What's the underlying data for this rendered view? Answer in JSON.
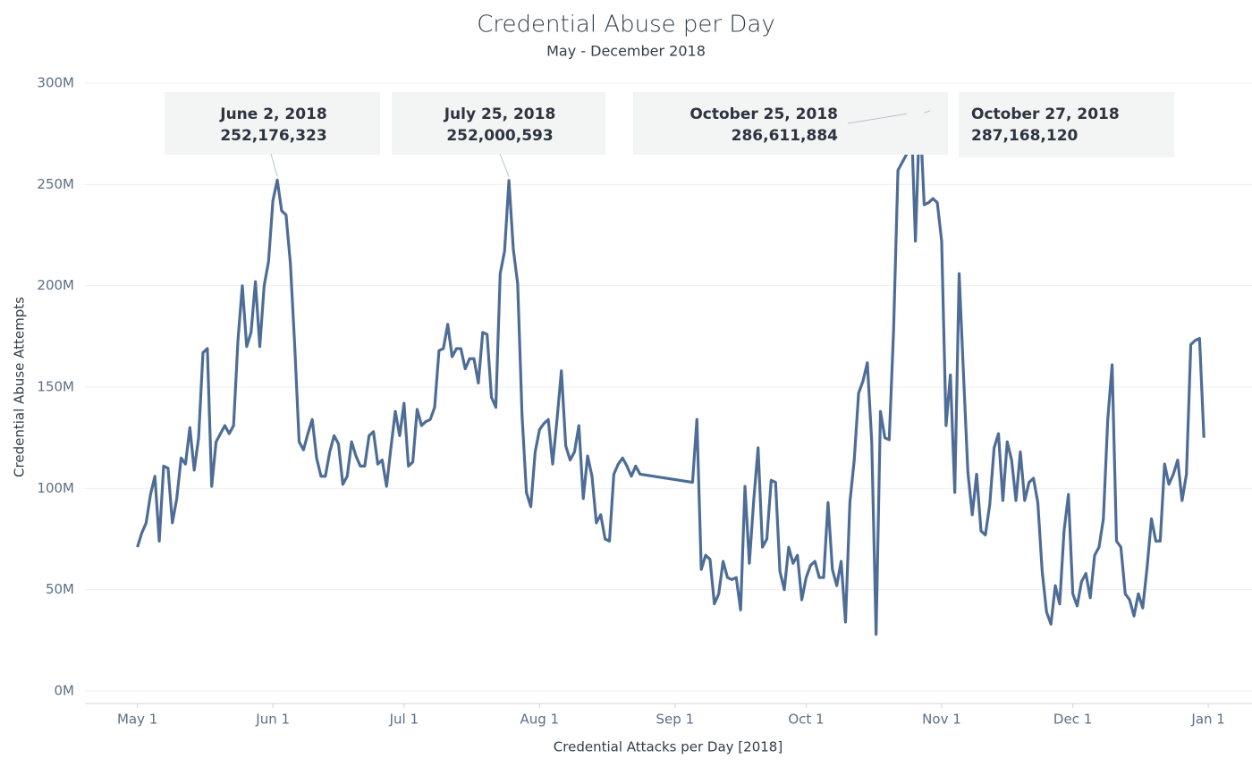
{
  "chart_data": {
    "type": "line",
    "title": "Credential Abuse per Day",
    "subtitle": "May - December 2018",
    "x_label": "Credential Attacks per Day [2018]",
    "y_label": "Credential Abuse Attempts",
    "grid": true,
    "xlim": [
      "2018-04-19",
      "2019-01-11"
    ],
    "ylim": [
      0,
      300
    ],
    "xticks": [
      {
        "value": "2018-05-01",
        "label": "May 1"
      },
      {
        "value": "2018-06-01",
        "label": "Jun 1"
      },
      {
        "value": "2018-07-01",
        "label": "Jul 1"
      },
      {
        "value": "2018-08-01",
        "label": "Aug 1"
      },
      {
        "value": "2018-09-01",
        "label": "Sep 1"
      },
      {
        "value": "2018-10-01",
        "label": "Oct 1"
      },
      {
        "value": "2018-11-01",
        "label": "Nov 1"
      },
      {
        "value": "2018-12-01",
        "label": "Dec 1"
      },
      {
        "value": "2019-01-01",
        "label": "Jan 1"
      }
    ],
    "yticks": [
      {
        "value": 0,
        "label": "0M"
      },
      {
        "value": 50,
        "label": "50M"
      },
      {
        "value": 100,
        "label": "100M"
      },
      {
        "value": 150,
        "label": "150M"
      },
      {
        "value": 200,
        "label": "200M"
      },
      {
        "value": 250,
        "label": "250M"
      },
      {
        "value": 300,
        "label": "300M"
      }
    ],
    "color": "#4e6d96",
    "x": [
      "2018-05-01",
      "2018-05-02",
      "2018-05-03",
      "2018-05-04",
      "2018-05-05",
      "2018-05-06",
      "2018-05-07",
      "2018-05-08",
      "2018-05-09",
      "2018-05-10",
      "2018-05-11",
      "2018-05-12",
      "2018-05-13",
      "2018-05-14",
      "2018-05-15",
      "2018-05-16",
      "2018-05-17",
      "2018-05-18",
      "2018-05-19",
      "2018-05-20",
      "2018-05-21",
      "2018-05-22",
      "2018-05-23",
      "2018-05-24",
      "2018-05-25",
      "2018-05-26",
      "2018-05-27",
      "2018-05-28",
      "2018-05-29",
      "2018-05-30",
      "2018-05-31",
      "2018-06-01",
      "2018-06-02",
      "2018-06-03",
      "2018-06-04",
      "2018-06-05",
      "2018-06-06",
      "2018-06-07",
      "2018-06-08",
      "2018-06-09",
      "2018-06-10",
      "2018-06-11",
      "2018-06-12",
      "2018-06-13",
      "2018-06-14",
      "2018-06-15",
      "2018-06-16",
      "2018-06-17",
      "2018-06-18",
      "2018-06-19",
      "2018-06-20",
      "2018-06-21",
      "2018-06-22",
      "2018-06-23",
      "2018-06-24",
      "2018-06-25",
      "2018-06-26",
      "2018-06-27",
      "2018-06-28",
      "2018-06-29",
      "2018-06-30",
      "2018-07-01",
      "2018-07-02",
      "2018-07-03",
      "2018-07-04",
      "2018-07-05",
      "2018-07-06",
      "2018-07-07",
      "2018-07-08",
      "2018-07-09",
      "2018-07-10",
      "2018-07-11",
      "2018-07-12",
      "2018-07-13",
      "2018-07-14",
      "2018-07-15",
      "2018-07-16",
      "2018-07-17",
      "2018-07-18",
      "2018-07-19",
      "2018-07-20",
      "2018-07-21",
      "2018-07-22",
      "2018-07-23",
      "2018-07-24",
      "2018-07-25",
      "2018-07-26",
      "2018-07-27",
      "2018-07-28",
      "2018-07-29",
      "2018-07-30",
      "2018-07-31",
      "2018-08-01",
      "2018-08-02",
      "2018-08-03",
      "2018-08-04",
      "2018-08-05",
      "2018-08-06",
      "2018-08-07",
      "2018-08-08",
      "2018-08-09",
      "2018-08-10",
      "2018-08-11",
      "2018-08-12",
      "2018-08-13",
      "2018-08-14",
      "2018-08-15",
      "2018-08-16",
      "2018-08-17",
      "2018-08-18",
      "2018-08-19",
      "2018-08-20",
      "2018-08-21",
      "2018-08-22",
      "2018-08-23",
      "2018-08-24",
      "2018-09-05",
      "2018-09-06",
      "2018-09-07",
      "2018-09-08",
      "2018-09-09",
      "2018-09-10",
      "2018-09-11",
      "2018-09-12",
      "2018-09-13",
      "2018-09-14",
      "2018-09-15",
      "2018-09-16",
      "2018-09-17",
      "2018-09-18",
      "2018-09-19",
      "2018-09-20",
      "2018-09-21",
      "2018-09-22",
      "2018-09-23",
      "2018-09-24",
      "2018-09-25",
      "2018-09-26",
      "2018-09-27",
      "2018-09-28",
      "2018-09-29",
      "2018-09-30",
      "2018-10-01",
      "2018-10-02",
      "2018-10-03",
      "2018-10-04",
      "2018-10-05",
      "2018-10-06",
      "2018-10-07",
      "2018-10-08",
      "2018-10-09",
      "2018-10-10",
      "2018-10-11",
      "2018-10-12",
      "2018-10-13",
      "2018-10-14",
      "2018-10-15",
      "2018-10-16",
      "2018-10-17",
      "2018-10-18",
      "2018-10-19",
      "2018-10-20",
      "2018-10-21",
      "2018-10-22",
      "2018-10-23",
      "2018-10-24",
      "2018-10-25",
      "2018-10-26",
      "2018-10-27",
      "2018-10-28",
      "2018-10-29",
      "2018-10-30",
      "2018-10-31",
      "2018-11-01",
      "2018-11-02",
      "2018-11-03",
      "2018-11-04",
      "2018-11-05",
      "2018-11-06",
      "2018-11-07",
      "2018-11-08",
      "2018-11-09",
      "2018-11-10",
      "2018-11-11",
      "2018-11-12",
      "2018-11-13",
      "2018-11-14",
      "2018-11-15",
      "2018-11-16",
      "2018-11-17",
      "2018-11-18",
      "2018-11-19",
      "2018-11-20",
      "2018-11-21",
      "2018-11-22",
      "2018-11-23",
      "2018-11-24",
      "2018-11-25",
      "2018-11-26",
      "2018-11-27",
      "2018-11-28",
      "2018-11-29",
      "2018-11-30",
      "2018-12-01",
      "2018-12-02",
      "2018-12-03",
      "2018-12-04",
      "2018-12-05",
      "2018-12-06",
      "2018-12-07",
      "2018-12-08",
      "2018-12-09",
      "2018-12-10",
      "2018-12-11",
      "2018-12-12",
      "2018-12-13",
      "2018-12-14",
      "2018-12-15",
      "2018-12-16",
      "2018-12-17",
      "2018-12-18",
      "2018-12-19",
      "2018-12-20",
      "2018-12-21",
      "2018-12-22",
      "2018-12-23",
      "2018-12-24",
      "2018-12-25",
      "2018-12-26",
      "2018-12-27",
      "2018-12-28",
      "2018-12-29",
      "2018-12-30",
      "2018-12-31"
    ],
    "values": [
      71,
      78,
      83,
      97,
      106,
      74,
      111,
      110,
      83,
      95,
      115,
      112,
      130,
      109,
      125,
      167,
      169,
      101,
      123,
      127,
      131,
      127,
      131,
      173,
      200,
      170,
      177,
      202,
      170,
      200,
      212,
      242,
      252.176323,
      237,
      235,
      211,
      170,
      123,
      119,
      127,
      134,
      115,
      106,
      106,
      118,
      126,
      122,
      102,
      106,
      123,
      116,
      111,
      111,
      126,
      128,
      112,
      114,
      101,
      120,
      138,
      126,
      142,
      111,
      113,
      139,
      131,
      133,
      134,
      140,
      168,
      169,
      181,
      165,
      169,
      169,
      159,
      164,
      164,
      152,
      177,
      176,
      145,
      140,
      206,
      217,
      252.000593,
      218,
      201,
      136,
      98,
      91,
      118,
      129,
      132,
      134,
      112,
      134,
      158,
      121,
      114,
      118,
      131,
      95,
      116,
      106,
      83,
      87,
      75,
      74,
      107,
      112,
      115,
      111,
      106,
      111,
      107,
      103,
      134,
      60,
      67,
      65,
      43,
      48,
      64,
      56,
      55,
      56,
      40,
      101,
      63,
      94,
      120,
      71,
      75,
      104,
      103,
      59,
      50,
      71,
      63,
      67,
      45,
      56,
      62,
      64,
      56,
      56,
      93,
      60,
      52,
      64,
      34,
      93,
      114,
      147,
      153,
      162,
      123,
      28,
      138,
      125,
      124,
      178,
      257,
      261,
      265,
      286.611884,
      222,
      287.16812,
      240,
      241,
      243,
      241,
      222,
      131,
      156,
      98,
      206,
      156,
      108,
      87,
      107,
      79,
      77,
      92,
      120,
      127,
      94,
      123,
      114,
      94,
      118,
      94,
      103,
      105,
      93,
      59,
      39,
      33,
      52,
      43,
      79,
      97,
      48,
      42,
      54,
      58,
      46,
      67,
      71,
      85,
      134,
      161,
      74,
      71,
      48,
      45,
      37,
      48,
      41,
      61,
      85,
      74,
      74,
      112,
      102,
      107,
      114,
      94,
      107,
      171,
      173,
      174,
      125
    ],
    "annotations": [
      {
        "x": "2018-06-02",
        "date_label": "June 2, 2018",
        "value": 252.176323,
        "label": "252,176,323"
      },
      {
        "x": "2018-07-25",
        "date_label": "July 25, 2018",
        "value": 252.000593,
        "label": "252,000,593"
      },
      {
        "x": "2018-10-25",
        "date_label": "October 25, 2018",
        "value": 286.611884,
        "label": "286,611,884"
      },
      {
        "x": "2018-10-27",
        "date_label": "October 27, 2018",
        "value": 287.16812,
        "label": "287,168,120"
      }
    ]
  }
}
